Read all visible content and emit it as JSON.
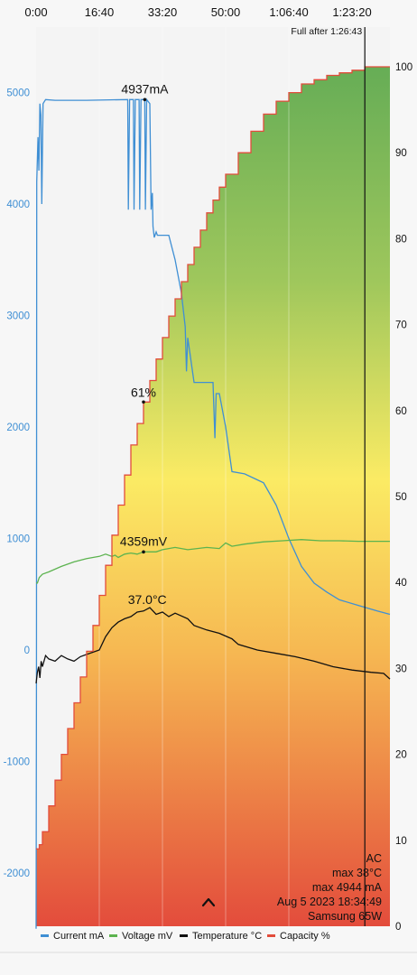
{
  "chart_data": {
    "type": "line",
    "time_ticks": [
      "0:00",
      "16:40",
      "33:20",
      "50:00",
      "1:06:40",
      "1:23:20"
    ],
    "time_tick_seconds": [
      0,
      1000,
      2000,
      3000,
      4000,
      5000
    ],
    "x_range_seconds": [
      0,
      5600
    ],
    "left_axis": {
      "ticks": [
        "5000",
        "4000",
        "3000",
        "2000",
        "1000",
        "0",
        "-1000",
        "-2000"
      ],
      "tick_values": [
        5000,
        4000,
        3000,
        2000,
        1000,
        0,
        -1000,
        -2000
      ],
      "range": [
        -2500,
        5300
      ]
    },
    "right_axis": {
      "ticks": [
        "100",
        "90",
        "80",
        "70",
        "60",
        "50",
        "40",
        "30",
        "20",
        "10",
        "0"
      ],
      "tick_values": [
        100,
        90,
        80,
        70,
        60,
        50,
        40,
        30,
        20,
        10,
        0
      ],
      "range": [
        0,
        100
      ]
    },
    "full_after_label": "Full after 1:26:43",
    "full_after_seconds": 5203,
    "annotations": {
      "current_max": "4937mA",
      "capacity_mid": "61%",
      "voltage": "4359mV",
      "temperature": "37.0°C"
    },
    "info": {
      "source": "AC",
      "max_temp": "max 38°C",
      "max_current": "max 4944 mA",
      "date": "Aug 5 2023 18:34:49",
      "charger": "Samsung 65W"
    },
    "legend": [
      {
        "label": "Current mA",
        "color": "#3f8fd4"
      },
      {
        "label": "Voltage mV",
        "color": "#5cb34f"
      },
      {
        "label": "Temperature °C",
        "color": "#111111"
      },
      {
        "label": "Capacity %",
        "color": "#e24c3b"
      }
    ],
    "series": [
      {
        "name": "Current mA",
        "axis": "left",
        "points": [
          [
            0,
            -2500
          ],
          [
            5,
            -300
          ],
          [
            10,
            4200
          ],
          [
            30,
            4600
          ],
          [
            45,
            4300
          ],
          [
            60,
            4900
          ],
          [
            75,
            4800
          ],
          [
            90,
            4000
          ],
          [
            110,
            4900
          ],
          [
            150,
            4937
          ],
          [
            300,
            4930
          ],
          [
            800,
            4930
          ],
          [
            1450,
            4937
          ],
          [
            1460,
            3950
          ],
          [
            1480,
            4937
          ],
          [
            1540,
            4937
          ],
          [
            1550,
            3950
          ],
          [
            1570,
            4937
          ],
          [
            1630,
            4937
          ],
          [
            1640,
            3950
          ],
          [
            1660,
            4937
          ],
          [
            1720,
            4937
          ],
          [
            1730,
            3950
          ],
          [
            1750,
            4937
          ],
          [
            1800,
            4900
          ],
          [
            1820,
            3950
          ],
          [
            1840,
            4100
          ],
          [
            1850,
            3800
          ],
          [
            1870,
            3700
          ],
          [
            1900,
            3750
          ],
          [
            1920,
            3720
          ],
          [
            2100,
            3720
          ],
          [
            2200,
            3500
          ],
          [
            2300,
            3200
          ],
          [
            2360,
            2900
          ],
          [
            2380,
            2500
          ],
          [
            2400,
            2800
          ],
          [
            2500,
            2400
          ],
          [
            2800,
            2400
          ],
          [
            2830,
            1900
          ],
          [
            2850,
            2300
          ],
          [
            2900,
            2300
          ],
          [
            3000,
            2000
          ],
          [
            3100,
            1600
          ],
          [
            3300,
            1580
          ],
          [
            3600,
            1500
          ],
          [
            3800,
            1300
          ],
          [
            4000,
            1000
          ],
          [
            4200,
            750
          ],
          [
            4400,
            600
          ],
          [
            4600,
            520
          ],
          [
            4800,
            450
          ],
          [
            5100,
            400
          ],
          [
            5400,
            350
          ],
          [
            5600,
            320
          ]
        ]
      },
      {
        "name": "Voltage mV",
        "axis": "left",
        "points": [
          [
            0,
            600
          ],
          [
            20,
            600
          ],
          [
            50,
            650
          ],
          [
            100,
            680
          ],
          [
            200,
            700
          ],
          [
            400,
            750
          ],
          [
            600,
            790
          ],
          [
            800,
            820
          ],
          [
            1000,
            840
          ],
          [
            1100,
            860
          ],
          [
            1200,
            840
          ],
          [
            1250,
            850
          ],
          [
            1300,
            830
          ],
          [
            1400,
            860
          ],
          [
            1500,
            870
          ],
          [
            1600,
            860
          ],
          [
            1700,
            880
          ],
          [
            1900,
            880
          ],
          [
            2000,
            900
          ],
          [
            2200,
            920
          ],
          [
            2400,
            900
          ],
          [
            2700,
            920
          ],
          [
            2900,
            910
          ],
          [
            3000,
            960
          ],
          [
            3100,
            930
          ],
          [
            3300,
            950
          ],
          [
            3600,
            970
          ],
          [
            3900,
            980
          ],
          [
            4200,
            990
          ],
          [
            4500,
            980
          ],
          [
            4800,
            980
          ],
          [
            5100,
            975
          ],
          [
            5600,
            975
          ]
        ]
      },
      {
        "name": "Temperature °C",
        "axis": "left",
        "points": [
          [
            0,
            -300
          ],
          [
            20,
            -200
          ],
          [
            40,
            -150
          ],
          [
            60,
            -250
          ],
          [
            80,
            -100
          ],
          [
            100,
            -150
          ],
          [
            150,
            -50
          ],
          [
            200,
            -80
          ],
          [
            300,
            -100
          ],
          [
            400,
            -50
          ],
          [
            500,
            -80
          ],
          [
            600,
            -100
          ],
          [
            700,
            -60
          ],
          [
            800,
            -40
          ],
          [
            1000,
            0
          ],
          [
            1100,
            120
          ],
          [
            1200,
            200
          ],
          [
            1300,
            250
          ],
          [
            1400,
            280
          ],
          [
            1500,
            300
          ],
          [
            1600,
            340
          ],
          [
            1700,
            350
          ],
          [
            1800,
            380
          ],
          [
            1900,
            320
          ],
          [
            2000,
            340
          ],
          [
            2100,
            300
          ],
          [
            2200,
            330
          ],
          [
            2400,
            280
          ],
          [
            2500,
            220
          ],
          [
            2700,
            180
          ],
          [
            2900,
            150
          ],
          [
            3100,
            100
          ],
          [
            3200,
            50
          ],
          [
            3500,
            0
          ],
          [
            3800,
            -30
          ],
          [
            4100,
            -60
          ],
          [
            4400,
            -100
          ],
          [
            4700,
            -150
          ],
          [
            5000,
            -180
          ],
          [
            5300,
            -200
          ],
          [
            5500,
            -210
          ],
          [
            5600,
            -260
          ]
        ]
      },
      {
        "name": "Capacity %",
        "axis": "right",
        "points": [
          [
            0,
            9
          ],
          [
            50,
            9.5
          ],
          [
            100,
            11
          ],
          [
            200,
            14
          ],
          [
            300,
            17
          ],
          [
            400,
            20
          ],
          [
            500,
            23
          ],
          [
            600,
            26
          ],
          [
            700,
            29
          ],
          [
            800,
            32
          ],
          [
            900,
            35
          ],
          [
            1000,
            38.5
          ],
          [
            1100,
            42
          ],
          [
            1200,
            45.5
          ],
          [
            1300,
            49
          ],
          [
            1400,
            52.5
          ],
          [
            1500,
            56
          ],
          [
            1600,
            58.5
          ],
          [
            1700,
            61
          ],
          [
            1800,
            63.5
          ],
          [
            1900,
            66
          ],
          [
            2000,
            68.5
          ],
          [
            2100,
            71
          ],
          [
            2200,
            73
          ],
          [
            2300,
            75
          ],
          [
            2400,
            77
          ],
          [
            2500,
            79
          ],
          [
            2600,
            81
          ],
          [
            2700,
            83
          ],
          [
            2800,
            84.5
          ],
          [
            2900,
            86
          ],
          [
            3000,
            87.5
          ],
          [
            3200,
            90
          ],
          [
            3400,
            92.5
          ],
          [
            3600,
            94.5
          ],
          [
            3800,
            96
          ],
          [
            4000,
            97
          ],
          [
            4200,
            98
          ],
          [
            4400,
            98.5
          ],
          [
            4600,
            99
          ],
          [
            4800,
            99.3
          ],
          [
            5000,
            99.6
          ],
          [
            5203,
            100
          ],
          [
            5600,
            100
          ]
        ]
      }
    ]
  }
}
